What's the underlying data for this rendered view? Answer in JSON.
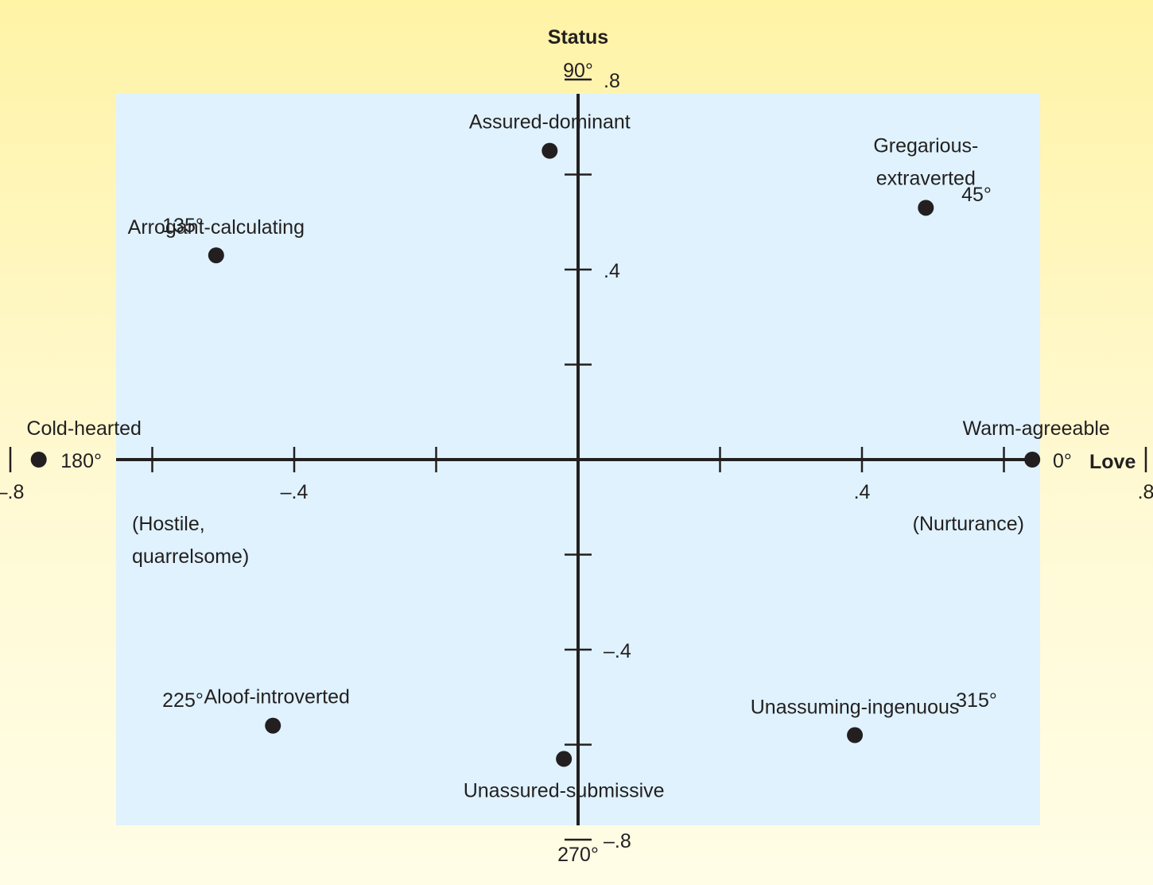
{
  "chart_data": {
    "type": "scatter",
    "title": "",
    "y_axis_title": "Status",
    "x_axis_title": "Love",
    "xlim": [
      -0.8,
      0.8
    ],
    "ylim": [
      -0.8,
      0.8
    ],
    "x_ticks": [
      -0.8,
      -0.6,
      -0.4,
      -0.2,
      0.2,
      0.4,
      0.6,
      0.8
    ],
    "y_ticks": [
      -0.8,
      -0.6,
      -0.4,
      -0.2,
      0.2,
      0.4,
      0.6,
      0.8
    ],
    "x_tick_labels": [
      {
        "value": -0.8,
        "label": "–.8"
      },
      {
        "value": -0.4,
        "label": "–.4"
      },
      {
        "value": 0.4,
        "label": ".4"
      },
      {
        "value": 0.8,
        "label": ".8"
      }
    ],
    "y_tick_labels": [
      {
        "value": 0.8,
        "label": ".8"
      },
      {
        "value": 0.4,
        "label": ".4"
      },
      {
        "value": -0.4,
        "label": "–.4"
      },
      {
        "value": -0.8,
        "label": "–.8"
      }
    ],
    "angle_labels": {
      "top": "90°",
      "bottom": "270°",
      "left": "180°",
      "right": "0°",
      "upper_right": "45°",
      "upper_left": "135°",
      "lower_left": "225°",
      "lower_right": "315°"
    },
    "pole_notes": {
      "left": [
        "(Hostile,",
        "quarrelsome)"
      ],
      "right": [
        "(Nurturance)"
      ]
    },
    "points": [
      {
        "label": [
          "Assured-dominant"
        ],
        "x": -0.04,
        "y": 0.65
      },
      {
        "label": [
          "Gregarious-",
          "extraverted"
        ],
        "x": 0.49,
        "y": 0.53
      },
      {
        "label": [
          "Arrogant-calculating"
        ],
        "x": -0.51,
        "y": 0.43
      },
      {
        "label": [
          "Cold-hearted"
        ],
        "x": -0.76,
        "y": 0.0
      },
      {
        "label": [
          "Warm-agreeable"
        ],
        "x": 0.64,
        "y": 0.0
      },
      {
        "label": [
          "Aloof-introverted"
        ],
        "x": -0.43,
        "y": -0.56
      },
      {
        "label": [
          "Unassured-submissive"
        ],
        "x": -0.02,
        "y": -0.63
      },
      {
        "label": [
          "Unassuming-ingenuous"
        ],
        "x": 0.39,
        "y": -0.58
      }
    ]
  }
}
